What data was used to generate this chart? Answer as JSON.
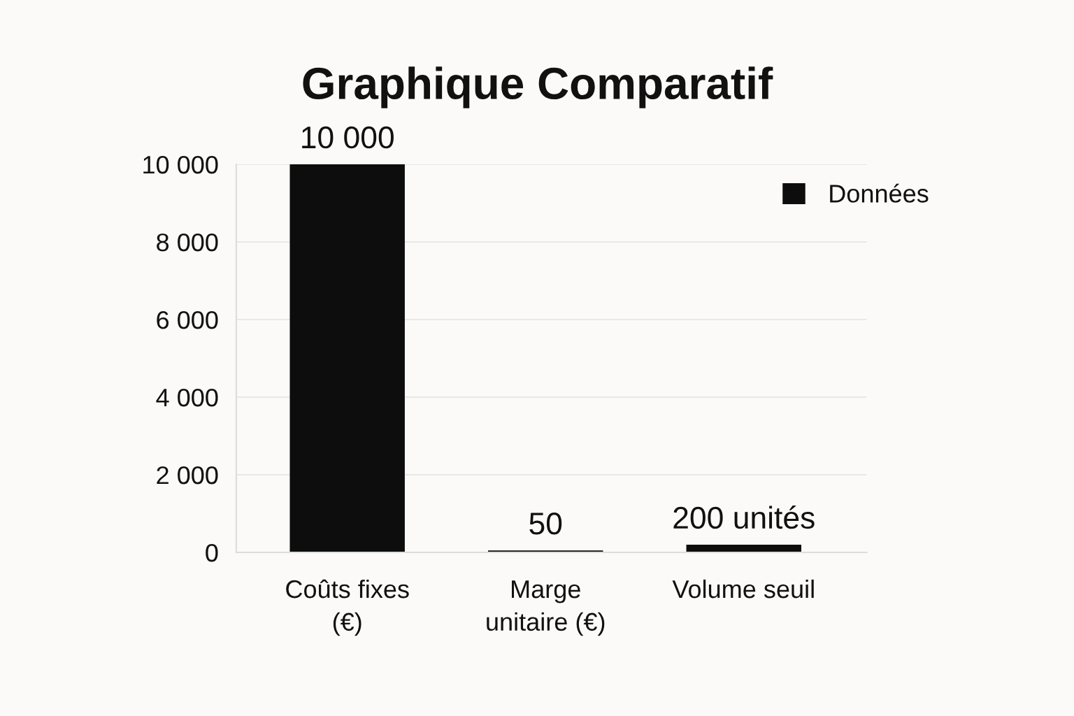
{
  "chart_data": {
    "type": "bar",
    "title": "Graphique Comparatif",
    "categories": [
      "Coûts fixes\n(€)",
      "Marge\nunitaire (€)",
      "Volume seuil"
    ],
    "series": [
      {
        "name": "Données",
        "color": "#0d0d0d",
        "values": [
          10000,
          50,
          200
        ],
        "value_labels": [
          "10 000",
          "50",
          "200 unités"
        ]
      }
    ],
    "ylim": [
      0,
      10000
    ],
    "yticks": [
      0,
      {
        "value": 2000,
        "label": "2 000"
      },
      {
        "value": 4000,
        "label": "4 000"
      },
      {
        "value": 6000,
        "label": "6 000"
      },
      {
        "value": 8000,
        "label": "8 000"
      },
      {
        "value": 10000,
        "label": "10 000"
      }
    ],
    "grid": "y",
    "legend": "top right"
  }
}
